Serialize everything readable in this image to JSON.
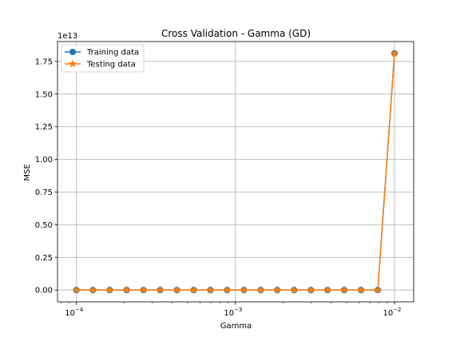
{
  "chart_data": {
    "type": "line",
    "title": "Cross Validation - Gamma (GD)",
    "xlabel": "Gamma",
    "ylabel": "MSE",
    "x_scale": "log",
    "xlim": [
      7.6e-05,
      0.0132
    ],
    "ylim": [
      -0.0906,
      1.9025
    ],
    "y_offset_text": "1e13",
    "y_multiplier": 10000000000000.0,
    "grid": true,
    "legend_position": "top-left",
    "x_ticks": [
      {
        "value": 0.0001,
        "base": "10",
        "exp": "−4"
      },
      {
        "value": 0.001,
        "base": "10",
        "exp": "−3"
      },
      {
        "value": 0.01,
        "base": "10",
        "exp": "−2"
      }
    ],
    "y_ticks": [
      "0.00",
      "0.25",
      "0.50",
      "0.75",
      "1.00",
      "1.25",
      "1.50",
      "1.75"
    ],
    "x": [
      0.0001,
      0.000127,
      0.000162,
      0.000207,
      0.000264,
      0.000336,
      0.000428,
      0.000546,
      0.000695,
      0.000886,
      0.00113,
      0.00144,
      0.00183,
      0.00234,
      0.00298,
      0.00379,
      0.00483,
      0.00616,
      0.00785,
      0.01
    ],
    "series": [
      {
        "name": "Training data",
        "color": "#1f77b4",
        "marker": "circle",
        "values": [
          0,
          0,
          0,
          0,
          0,
          0,
          0,
          0,
          0,
          0,
          0,
          0,
          0,
          0,
          0,
          0,
          0,
          0,
          0,
          1.812
        ]
      },
      {
        "name": "Testing data",
        "color": "#ff7f0e",
        "marker": "star",
        "values": [
          0,
          0,
          0,
          0,
          0,
          0,
          0,
          0,
          0,
          0,
          0,
          0,
          0,
          0,
          0,
          0,
          0,
          0,
          0,
          1.812
        ]
      }
    ]
  }
}
